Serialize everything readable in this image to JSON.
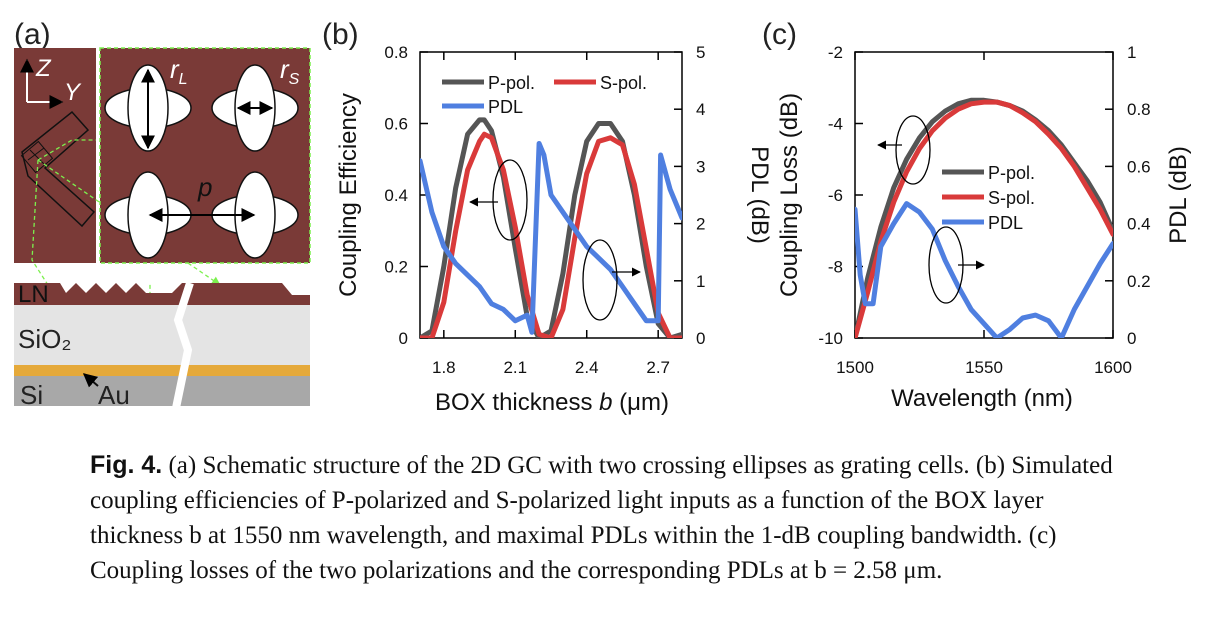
{
  "panel_a": {
    "label": "(a)",
    "axis_z": "Z",
    "axis_y": "Y",
    "rL": "r",
    "rL_sub": "L",
    "rS": "r",
    "rS_sub": "S",
    "p": "p",
    "layers": {
      "ln": "LN",
      "sio2": "SiO₂",
      "si": "Si",
      "au": "Au"
    },
    "colors": {
      "ln": "#7a3a37",
      "sio2": "#e4e4e4",
      "si": "#a8a8a8",
      "au": "#e5a93a",
      "guide": "#7cf04e"
    }
  },
  "panel_b": {
    "label": "(b)",
    "ylabel_left": "Coupling Efficiency",
    "ylabel_right": "PDL (dB)",
    "xlabel_text": "BOX thickness ",
    "xlabel_var": "b",
    "xlabel_unit": " (μm)",
    "xticks": [
      "1.8",
      "2.1",
      "2.4",
      "2.7"
    ],
    "yticks_left": [
      "0",
      "0.2",
      "0.4",
      "0.6",
      "0.8"
    ],
    "yticks_right": [
      "0",
      "1",
      "2",
      "3",
      "4",
      "5"
    ],
    "legend": {
      "p": "P-pol.",
      "s": "S-pol.",
      "pdl": "PDL"
    }
  },
  "panel_c": {
    "label": "(c)",
    "ylabel_left": "Coupling Loss (dB)",
    "ylabel_right": "PDL (dB)",
    "xlabel": "Wavelength (nm)",
    "xticks": [
      "1500",
      "1550",
      "1600"
    ],
    "yticks_left": [
      "-10",
      "-8",
      "-6",
      "-4",
      "-2"
    ],
    "yticks_right": [
      "0",
      "0.2",
      "0.4",
      "0.6",
      "0.8",
      "1"
    ],
    "legend": {
      "p": "P-pol.",
      "s": "S-pol.",
      "pdl": "PDL"
    }
  },
  "chart_data": [
    {
      "type": "line",
      "xlim": [
        1.7,
        2.8
      ],
      "ylim": [
        0,
        0.8
      ],
      "ylim_right": [
        0,
        5
      ],
      "x": [
        1.7,
        1.75,
        1.8,
        1.85,
        1.9,
        1.95,
        1.97,
        2.0,
        2.05,
        2.1,
        2.15,
        2.2,
        2.25,
        2.3,
        2.35,
        2.4,
        2.45,
        2.5,
        2.55,
        2.6,
        2.65,
        2.7,
        2.75,
        2.8
      ],
      "series": [
        {
          "name": "P-pol.",
          "color": "#555555",
          "axis": "left",
          "values": [
            0.0,
            0.02,
            0.2,
            0.42,
            0.57,
            0.61,
            0.61,
            0.58,
            0.45,
            0.25,
            0.06,
            0.0,
            0.02,
            0.18,
            0.4,
            0.55,
            0.6,
            0.6,
            0.55,
            0.4,
            0.2,
            0.04,
            0.0,
            0.01
          ]
        },
        {
          "name": "S-pol.",
          "color": "#d93a3a",
          "axis": "left",
          "values": [
            0.0,
            0.0,
            0.1,
            0.3,
            0.47,
            0.55,
            0.57,
            0.56,
            0.47,
            0.31,
            0.12,
            0.01,
            0.0,
            0.08,
            0.28,
            0.46,
            0.55,
            0.56,
            0.54,
            0.43,
            0.25,
            0.07,
            0.0,
            0.0
          ]
        },
        {
          "name": "PDL",
          "color": "#4f7fe0",
          "axis": "right",
          "x": [
            1.7,
            1.75,
            1.8,
            1.85,
            1.9,
            1.95,
            2.0,
            2.05,
            2.1,
            2.15,
            2.17,
            2.2,
            2.22,
            2.25,
            2.3,
            2.35,
            2.4,
            2.45,
            2.5,
            2.55,
            2.6,
            2.65,
            2.7,
            2.71,
            2.75,
            2.8
          ],
          "values": [
            3.1,
            2.2,
            1.6,
            1.3,
            1.1,
            0.9,
            0.6,
            0.5,
            0.3,
            0.4,
            0.1,
            3.4,
            3.2,
            2.5,
            2.2,
            1.9,
            1.6,
            1.4,
            1.2,
            0.9,
            0.6,
            0.3,
            0.3,
            3.2,
            2.6,
            2.1
          ]
        }
      ]
    },
    {
      "type": "line",
      "xlim": [
        1500,
        1600
      ],
      "ylim": [
        -10,
        -2
      ],
      "ylim_right": [
        0,
        1
      ],
      "series": [
        {
          "name": "P-pol.",
          "color": "#555555",
          "axis": "left",
          "x": [
            1500,
            1505,
            1510,
            1515,
            1520,
            1525,
            1530,
            1535,
            1540,
            1545,
            1550,
            1555,
            1560,
            1565,
            1570,
            1575,
            1580,
            1585,
            1590,
            1595,
            1600
          ],
          "values": [
            -10.0,
            -8.3,
            -6.9,
            -5.8,
            -5.0,
            -4.4,
            -3.95,
            -3.65,
            -3.45,
            -3.35,
            -3.35,
            -3.4,
            -3.5,
            -3.65,
            -3.9,
            -4.2,
            -4.6,
            -5.1,
            -5.6,
            -6.2,
            -7.0
          ]
        },
        {
          "name": "S-pol.",
          "color": "#d93a3a",
          "axis": "left",
          "x": [
            1500,
            1505,
            1510,
            1515,
            1520,
            1525,
            1530,
            1535,
            1540,
            1545,
            1550,
            1555,
            1560,
            1565,
            1570,
            1575,
            1580,
            1585,
            1590,
            1595,
            1600
          ],
          "values": [
            -10.0,
            -8.7,
            -7.3,
            -6.2,
            -5.35,
            -4.7,
            -4.2,
            -3.85,
            -3.6,
            -3.45,
            -3.4,
            -3.4,
            -3.5,
            -3.7,
            -3.95,
            -4.3,
            -4.7,
            -5.2,
            -5.8,
            -6.4,
            -7.1
          ]
        },
        {
          "name": "PDL",
          "color": "#4f7fe0",
          "axis": "right",
          "x": [
            1500,
            1502,
            1504,
            1507,
            1510,
            1515,
            1520,
            1525,
            1530,
            1535,
            1540,
            1545,
            1550,
            1555,
            1560,
            1565,
            1570,
            1575,
            1580,
            1585,
            1590,
            1595,
            1600
          ],
          "values": [
            0.45,
            0.22,
            0.12,
            0.12,
            0.32,
            0.4,
            0.47,
            0.44,
            0.38,
            0.27,
            0.18,
            0.1,
            0.05,
            0.0,
            0.03,
            0.07,
            0.08,
            0.06,
            0.0,
            0.1,
            0.18,
            0.26,
            0.33
          ]
        }
      ]
    }
  ],
  "caption": {
    "label": "Fig. 4.",
    "text": " (a) Schematic structure of the 2D GC with two crossing ellipses as grating cells. (b) Simulated coupling efficiencies of P-polarized and S-polarized light inputs as a function of the BOX layer thickness b at 1550 nm wavelength, and maximal PDLs within the 1-dB coupling bandwidth. (c) Coupling losses of the two polarizations and the corresponding PDLs at b = 2.58 μm."
  }
}
